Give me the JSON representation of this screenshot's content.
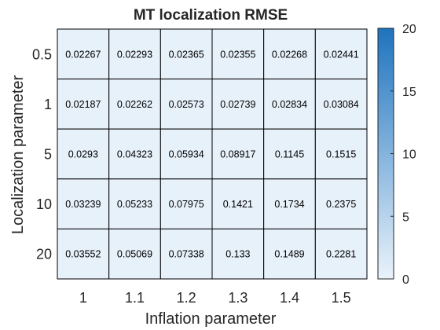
{
  "chart_data": {
    "type": "heatmap",
    "title": "MT localization RMSE",
    "xlabel": "Inflation parameter",
    "ylabel": "Localization parameter",
    "x_categories": [
      "1",
      "1.1",
      "1.2",
      "1.3",
      "1.4",
      "1.5"
    ],
    "y_categories": [
      "0.5",
      "1",
      "5",
      "10",
      "20"
    ],
    "values": [
      [
        0.02267,
        0.02293,
        0.02365,
        0.02355,
        0.02268,
        0.02441
      ],
      [
        0.02187,
        0.02262,
        0.02573,
        0.02739,
        0.02834,
        0.03084
      ],
      [
        0.0293,
        0.04323,
        0.05934,
        0.08917,
        0.1145,
        0.1515
      ],
      [
        0.03239,
        0.05233,
        0.07975,
        0.1421,
        0.1734,
        0.2375
      ],
      [
        0.03552,
        0.05069,
        0.07338,
        0.133,
        0.1489,
        0.2281
      ]
    ],
    "cell_labels": [
      [
        "0.02267",
        "0.02293",
        "0.02365",
        "0.02355",
        "0.02268",
        "0.02441"
      ],
      [
        "0.02187",
        "0.02262",
        "0.02573",
        "0.02739",
        "0.02834",
        "0.03084"
      ],
      [
        "0.0293",
        "0.04323",
        "0.05934",
        "0.08917",
        "0.1145",
        "0.1515"
      ],
      [
        "0.03239",
        "0.05233",
        "0.07975",
        "0.1421",
        "0.1734",
        "0.2375"
      ],
      [
        "0.03552",
        "0.05069",
        "0.07338",
        "0.133",
        "0.1489",
        "0.2281"
      ]
    ],
    "colorbar": {
      "range": [
        0,
        20
      ],
      "ticks": [
        "0",
        "5",
        "10",
        "15",
        "20"
      ],
      "color_low": "#eaf3fb",
      "color_high": "#1e73be"
    },
    "cell_color": "#e7f1fa",
    "grid_color": "#000000"
  }
}
